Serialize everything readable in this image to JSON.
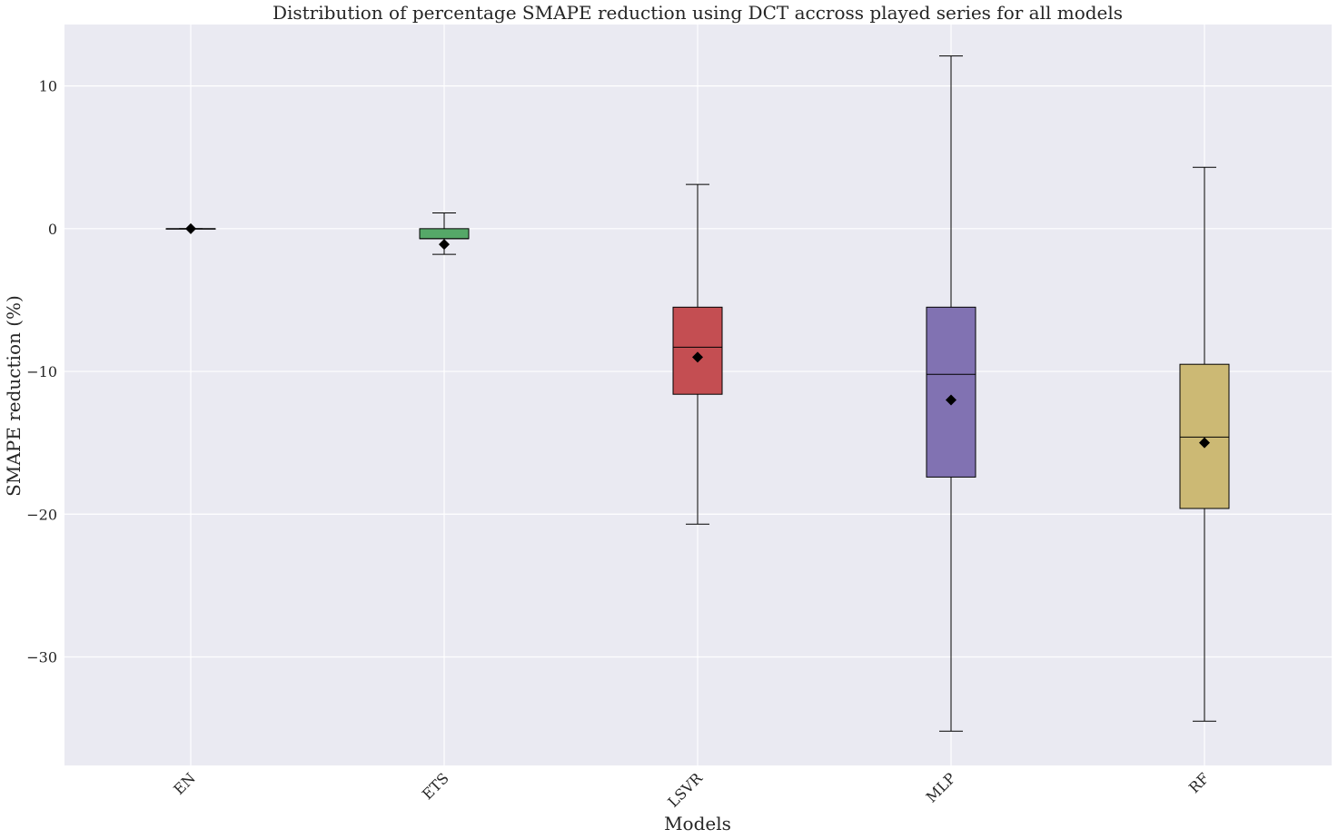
{
  "chart_data": {
    "type": "box",
    "title": "Distribution of percentage SMAPE reduction using DCT accross played series for all models",
    "xlabel": "Models",
    "ylabel": "SMAPE reduction (%)",
    "ylim": [
      -37.6,
      14.3
    ],
    "yticks": [
      10,
      0,
      -10,
      -20,
      -30
    ],
    "ytick_labels": [
      "10",
      "0",
      "−10",
      "−20",
      "−30"
    ],
    "grid": true,
    "background_color": "#EAEAF2",
    "grid_color": "#FFFFFF",
    "mean_marker": "black-diamond",
    "categories": [
      "EN",
      "ETS",
      "LSVR",
      "MLP",
      "RF"
    ],
    "boxes": [
      {
        "label": "EN",
        "whisker_low": 0.0,
        "q1": 0.0,
        "median": 0.0,
        "q3": 0.0,
        "whisker_high": 0.0,
        "mean": 0.0,
        "color": "#4C72B0"
      },
      {
        "label": "ETS",
        "whisker_low": -1.8,
        "q1": -0.7,
        "median": -0.7,
        "q3": 0.0,
        "whisker_high": 1.1,
        "mean": -1.1,
        "color": "#55A868"
      },
      {
        "label": "LSVR",
        "whisker_low": -20.7,
        "q1": -11.6,
        "median": -8.3,
        "q3": -5.5,
        "whisker_high": 3.1,
        "mean": -9.0,
        "color": "#C44E52"
      },
      {
        "label": "MLP",
        "whisker_low": -35.2,
        "q1": -17.4,
        "median": -10.2,
        "q3": -5.5,
        "whisker_high": 12.1,
        "mean": -12.0,
        "color": "#8172B2"
      },
      {
        "label": "RF",
        "whisker_low": -34.5,
        "q1": -19.6,
        "median": -14.6,
        "q3": -9.5,
        "whisker_high": 4.3,
        "mean": -15.0,
        "color": "#CCB974"
      }
    ]
  }
}
